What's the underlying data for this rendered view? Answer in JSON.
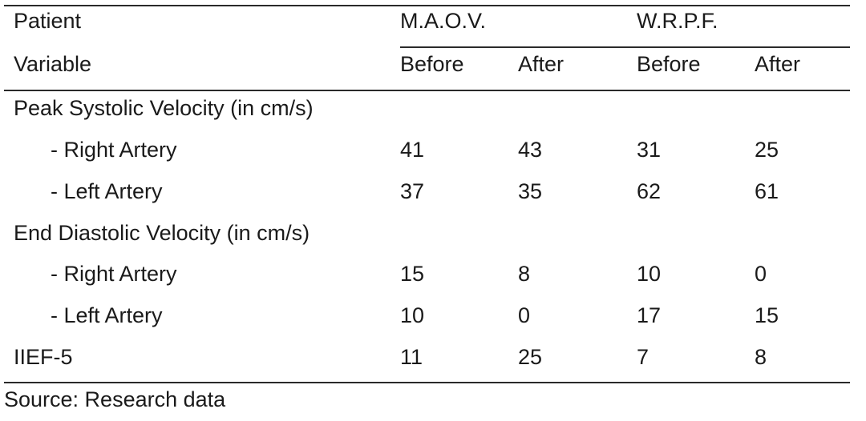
{
  "header": {
    "patient_label": "Patient",
    "variable_label": "Variable",
    "patient_1": "M.A.O.V.",
    "patient_2": "W.R.P.F.",
    "before": "Before",
    "after": "After"
  },
  "sections": [
    {
      "title": "Peak Systolic Velocity (in cm/s)",
      "rows": [
        {
          "label": "- Right Artery",
          "values": [
            "41",
            "43",
            "31",
            "25"
          ]
        },
        {
          "label": "- Left Artery",
          "values": [
            "37",
            "35",
            "62",
            "61"
          ]
        }
      ]
    },
    {
      "title": "End Diastolic Velocity (in cm/s)",
      "rows": [
        {
          "label": "- Right Artery",
          "values": [
            "15",
            "8",
            "10",
            "0"
          ]
        },
        {
          "label": "- Left Artery",
          "values": [
            "10",
            "0",
            "17",
            "15"
          ]
        }
      ]
    }
  ],
  "iief": {
    "label": "IIEF-5",
    "values": [
      "11",
      "25",
      "7",
      "8"
    ]
  },
  "footer": {
    "source": "Source: Research data"
  }
}
